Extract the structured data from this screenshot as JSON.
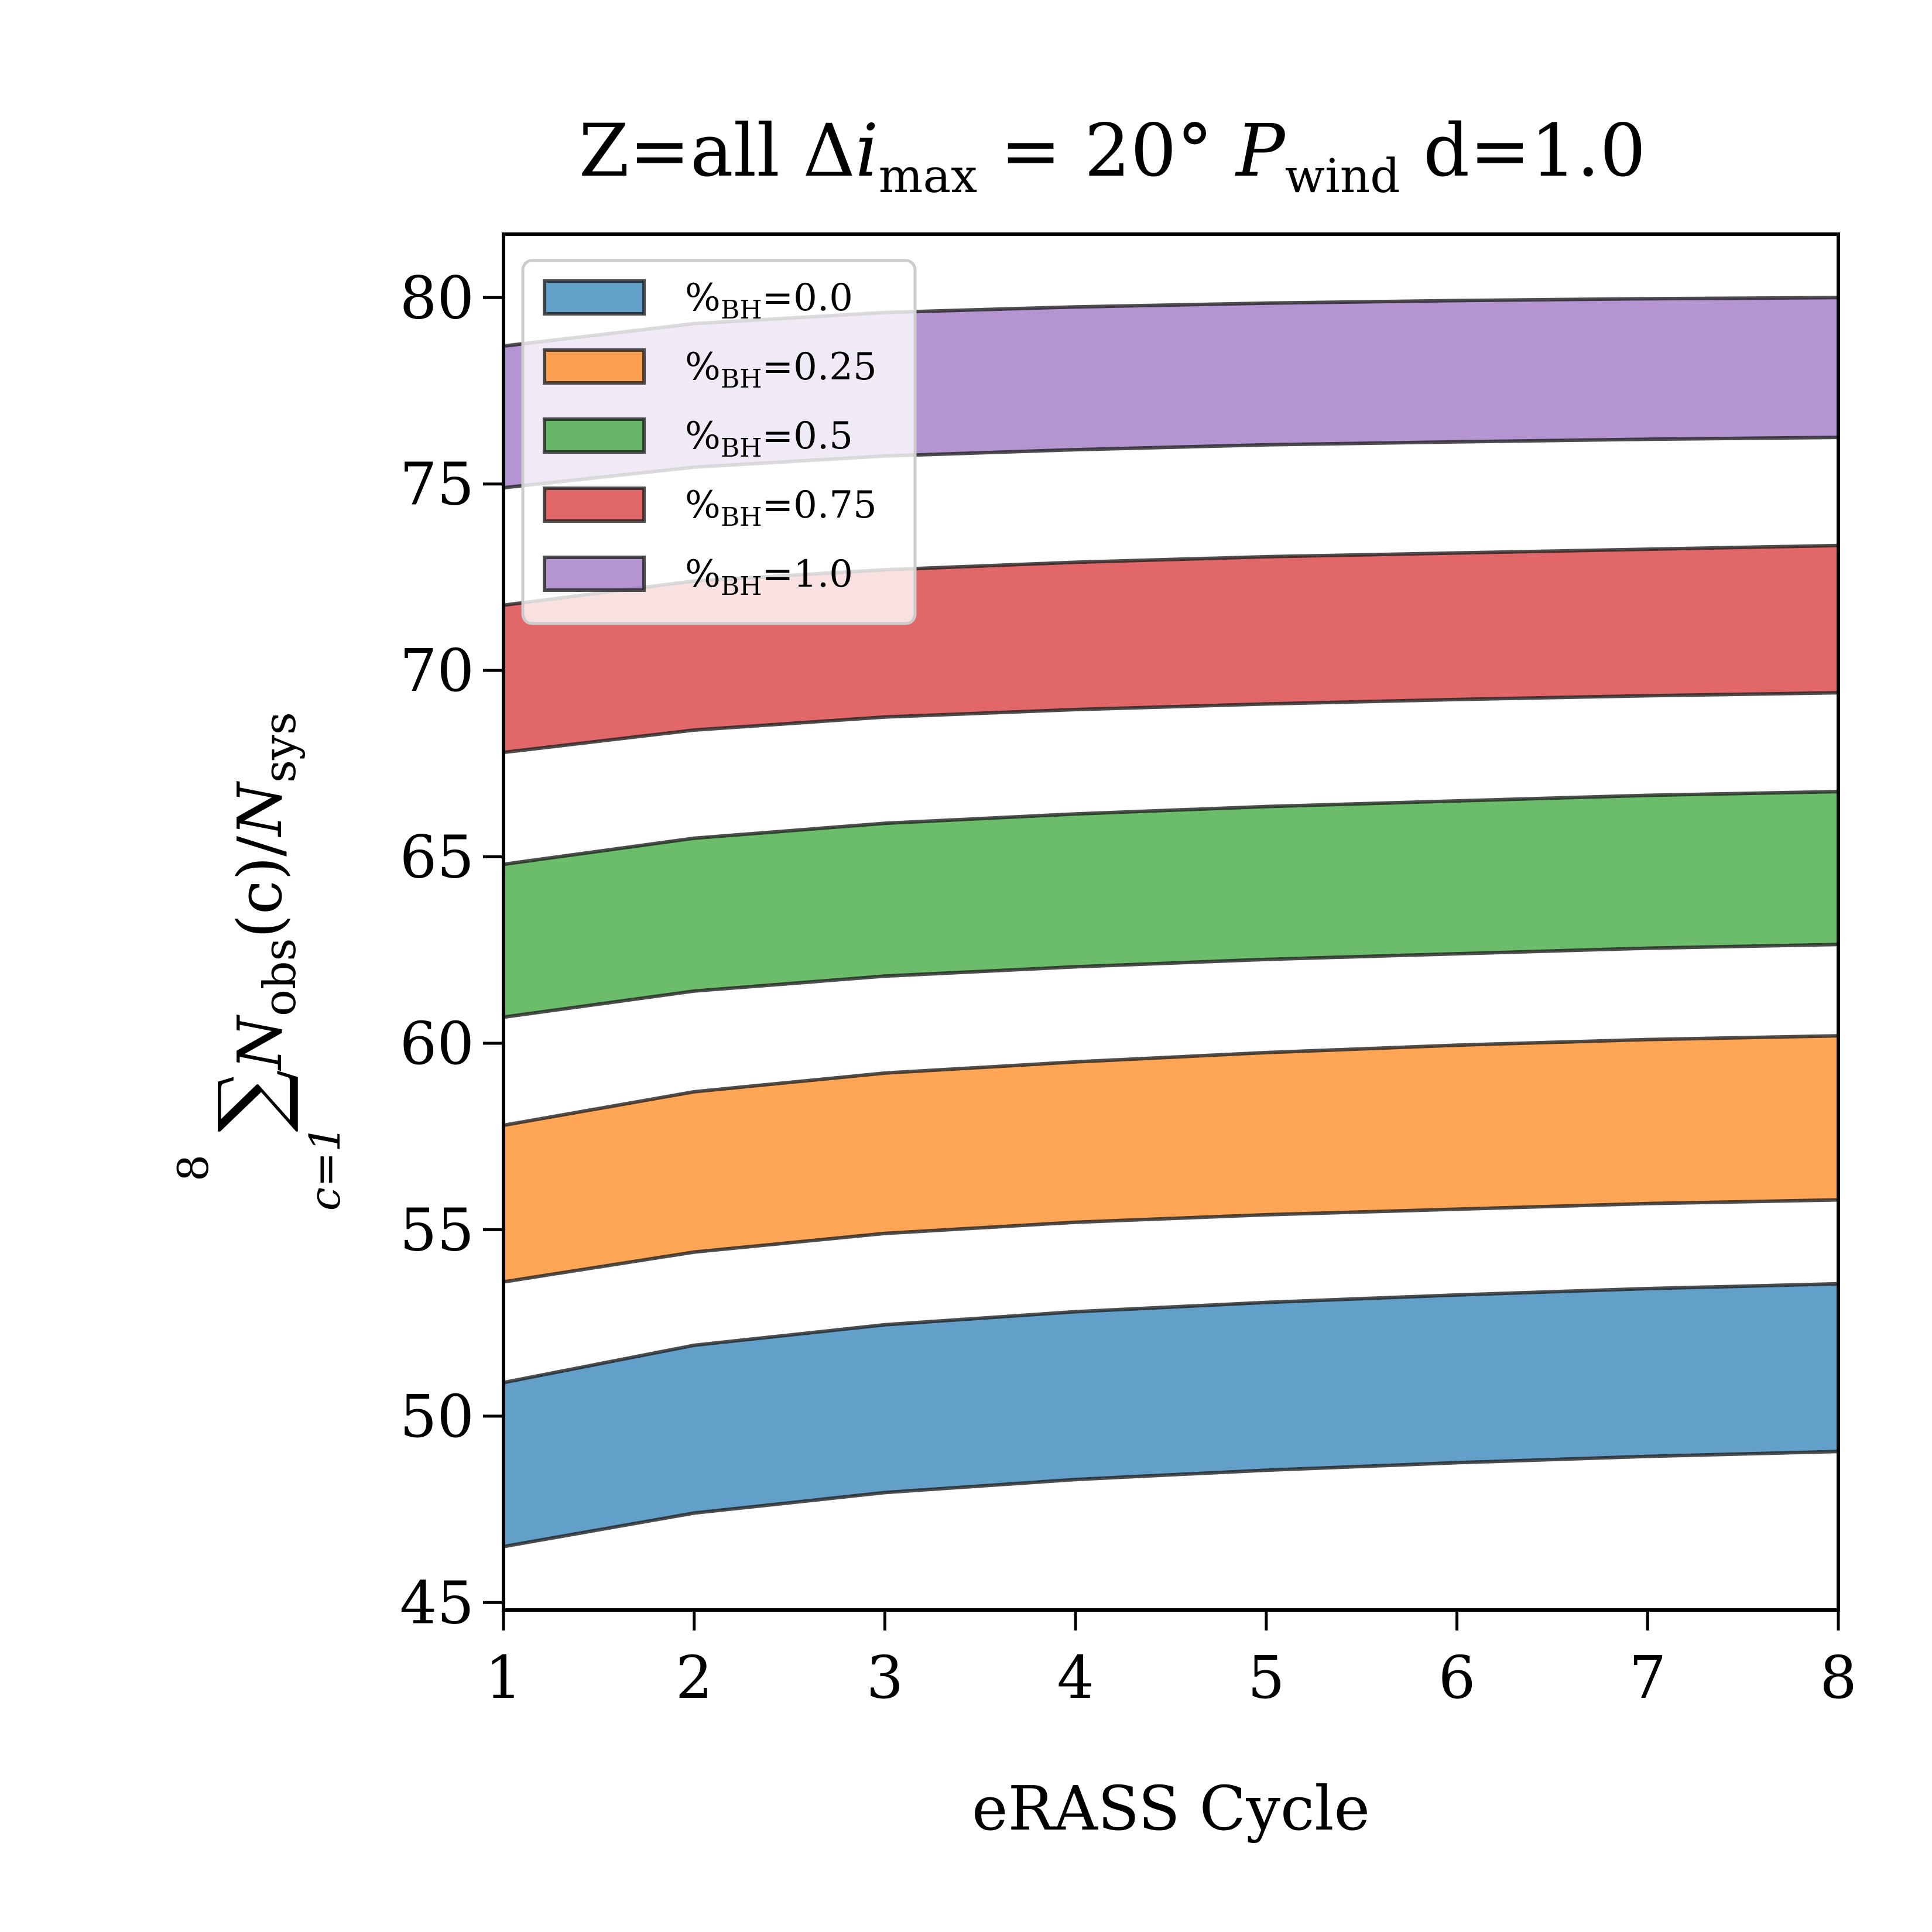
{
  "chart_data": {
    "type": "area",
    "title": "Z=all Δi_max = 20° P_wind d=1.0",
    "title_parts": {
      "prefix": "Z=all Δ",
      "i": "i",
      "i_sub": "max",
      "mid": " = 20° ",
      "p": "P",
      "p_sub": "wind",
      "suffix": " d=1.0"
    },
    "xlabel": "eRASS Cycle",
    "ylabel": "∑_{c=1}^{8} N_obs(c)/N_sys",
    "ylabel_parts": {
      "sum": "∑",
      "upper": "8",
      "lower": "c=1",
      "n1": "N",
      "n1_sub": "obs",
      "arg": "(c)/",
      "n2": "N",
      "n2_sub": "sys"
    },
    "xlim": [
      1,
      8
    ],
    "ylim": [
      44.8,
      81.7
    ],
    "xticks": [
      1,
      2,
      3,
      4,
      5,
      6,
      7,
      8
    ],
    "yticks": [
      45,
      50,
      55,
      60,
      65,
      70,
      75,
      80
    ],
    "grid": false,
    "legend_placement": "upper-left",
    "x": [
      1,
      2,
      3,
      4,
      5,
      6,
      7,
      8
    ],
    "series": [
      {
        "name": "%BH=0.0",
        "legend": {
          "pre": "%",
          "sub": "BH",
          "post": "=0.0"
        },
        "color": "#1f77b4",
        "lower": [
          46.5,
          47.4,
          47.95,
          48.3,
          48.55,
          48.75,
          48.92,
          49.05
        ],
        "upper": [
          50.9,
          51.9,
          52.45,
          52.8,
          53.05,
          53.25,
          53.42,
          53.55
        ]
      },
      {
        "name": "%BH=0.25",
        "legend": {
          "pre": "%",
          "sub": "BH",
          "post": "=0.25"
        },
        "color": "#ff7f0e",
        "lower": [
          53.6,
          54.4,
          54.9,
          55.2,
          55.4,
          55.55,
          55.7,
          55.8
        ],
        "upper": [
          57.8,
          58.7,
          59.2,
          59.5,
          59.75,
          59.95,
          60.1,
          60.2
        ]
      },
      {
        "name": "%BH=0.5",
        "legend": {
          "pre": "%",
          "sub": "BH",
          "post": "=0.5"
        },
        "color": "#2ca02c",
        "lower": [
          60.7,
          61.4,
          61.8,
          62.05,
          62.25,
          62.4,
          62.55,
          62.65
        ],
        "upper": [
          64.8,
          65.5,
          65.9,
          66.15,
          66.35,
          66.5,
          66.65,
          66.75
        ]
      },
      {
        "name": "%BH=0.75",
        "legend": {
          "pre": "%",
          "sub": "BH",
          "post": "=0.75"
        },
        "color": "#d62728",
        "lower": [
          67.8,
          68.4,
          68.75,
          68.95,
          69.1,
          69.22,
          69.32,
          69.4
        ],
        "upper": [
          71.75,
          72.4,
          72.7,
          72.9,
          73.05,
          73.15,
          73.25,
          73.35
        ]
      },
      {
        "name": "%BH=1.0",
        "legend": {
          "pre": "%",
          "sub": "BH",
          "post": "=1.0"
        },
        "color": "#9467bd",
        "lower": [
          74.9,
          75.45,
          75.75,
          75.92,
          76.05,
          76.13,
          76.2,
          76.25
        ],
        "upper": [
          78.7,
          79.3,
          79.6,
          79.75,
          79.85,
          79.92,
          79.97,
          80.0
        ]
      }
    ]
  }
}
